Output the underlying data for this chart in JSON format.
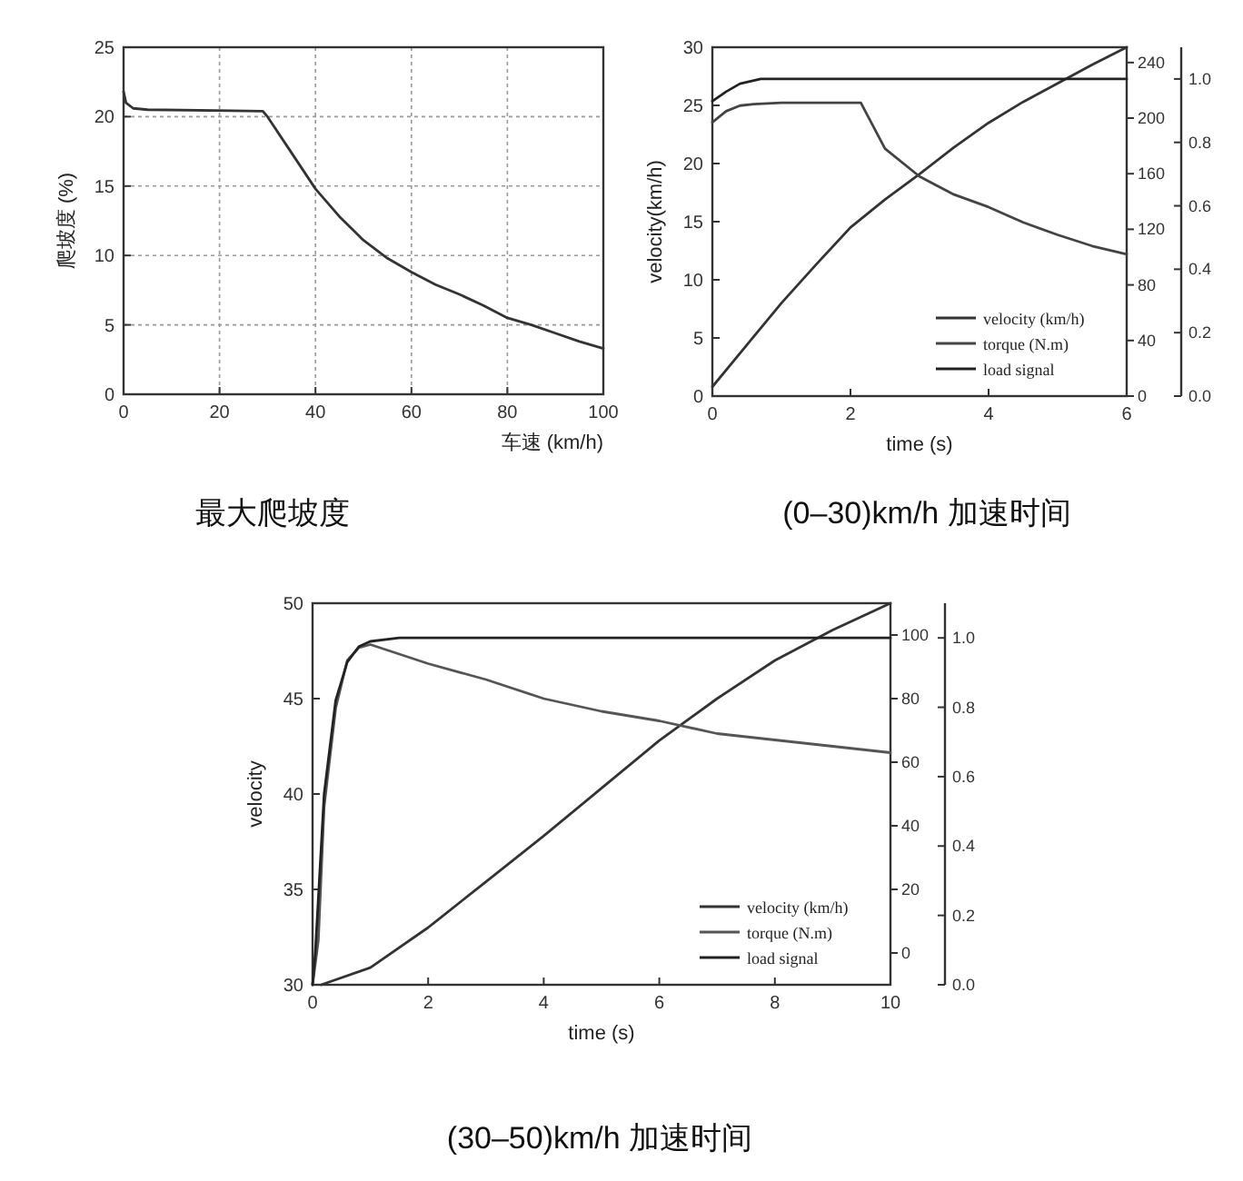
{
  "chart_data": [
    {
      "type": "line",
      "title": "最大爬坡度",
      "xlabel": "车速 (km/h)",
      "ylabel": "爬坡度 (%)",
      "color": "#333333",
      "grid": true,
      "x": [
        0,
        0.5,
        2,
        5,
        29,
        30,
        35,
        40,
        45,
        50,
        55,
        60,
        65,
        70,
        75,
        80,
        85,
        90,
        95,
        100
      ],
      "values": [
        21.8,
        21.0,
        20.6,
        20.5,
        20.4,
        20.0,
        17.4,
        14.8,
        12.8,
        11.1,
        9.8,
        8.8,
        7.9,
        7.2,
        6.4,
        5.5,
        5.0,
        4.4,
        3.8,
        3.3
      ],
      "xlim": [
        0,
        100
      ],
      "ylim": [
        0,
        25
      ],
      "xticks": [
        0,
        20,
        40,
        60,
        80,
        100
      ],
      "yticks": [
        0,
        5,
        10,
        15,
        20,
        25
      ]
    },
    {
      "type": "line",
      "title": "(0–30)km/h 加速时间",
      "xlabel": "time (s)",
      "ylabel": "velocity(km/h)",
      "legend": "bottom right",
      "xlim": [
        0,
        6
      ],
      "ylim": [
        0,
        30
      ],
      "y2lim": [
        0,
        251
      ],
      "y3lim": [
        0,
        1.1
      ],
      "xticks": [
        0,
        2,
        4,
        6
      ],
      "yticks": [
        0,
        5,
        10,
        15,
        20,
        25,
        30
      ],
      "y2ticks": [
        0,
        40,
        80,
        120,
        160,
        200,
        240
      ],
      "y3ticks": [
        {
          "value": 0,
          "label": "0.0"
        },
        {
          "value": 0.2,
          "label": "0.2"
        },
        {
          "value": 0.4,
          "label": "0.4"
        },
        {
          "value": 0.6,
          "label": "0.6"
        },
        {
          "value": 0.8,
          "label": "0.8"
        },
        {
          "value": 1,
          "label": "1.0"
        }
      ],
      "series": [
        {
          "name": "velocity (km/h)",
          "color": "#333333",
          "x": [
            0,
            0.5,
            1,
            1.5,
            2,
            2.5,
            3,
            3.5,
            4,
            4.5,
            5,
            5.5,
            6
          ],
          "values": [
            0.8,
            4.4,
            8.0,
            11.3,
            14.5,
            16.9,
            19.1,
            21.4,
            23.5,
            25.3,
            26.9,
            28.5,
            30
          ]
        },
        {
          "name": "torque (N.m)",
          "color": "#444444",
          "axis": "y2",
          "x": [
            0,
            0.2,
            0.4,
            0.6,
            1,
            1.5,
            2.15,
            2.5,
            3,
            3.5,
            4,
            4.5,
            5,
            5.5,
            6
          ],
          "values": [
            197,
            205,
            209,
            210,
            211,
            211,
            211,
            178,
            158,
            145,
            136,
            125,
            116,
            108,
            102
          ]
        },
        {
          "name": "load signal",
          "color": "#222222",
          "axis": "y3",
          "x": [
            0,
            0.2,
            0.4,
            0.7,
            1,
            6
          ],
          "values": [
            0.93,
            0.96,
            0.985,
            1.0,
            1.0,
            1.0
          ]
        }
      ]
    },
    {
      "type": "line",
      "title": "(30–50)km/h 加速时间",
      "xlabel": "time (s)",
      "ylabel": "velocity",
      "legend": "bottom right",
      "xlim": [
        0,
        10
      ],
      "ylim": [
        30,
        50
      ],
      "y2lim": [
        -10,
        110
      ],
      "y3lim": [
        0,
        1.1
      ],
      "xticks": [
        0,
        2,
        4,
        6,
        8,
        10
      ],
      "yticks": [
        30,
        35,
        40,
        45,
        50
      ],
      "y2ticks": [
        0,
        20,
        40,
        60,
        80,
        100
      ],
      "y3ticks": [
        {
          "value": 0,
          "label": "0.0"
        },
        {
          "value": 0.2,
          "label": "0.2"
        },
        {
          "value": 0.4,
          "label": "0.4"
        },
        {
          "value": 0.6,
          "label": "0.6"
        },
        {
          "value": 0.8,
          "label": "0.8"
        },
        {
          "value": 1,
          "label": "1.0"
        }
      ],
      "series": [
        {
          "name": "velocity (km/h)",
          "color": "#333333",
          "x": [
            0.15,
            1,
            2,
            3,
            4,
            5,
            6,
            7,
            8,
            9,
            10
          ],
          "values": [
            30,
            30.9,
            33.0,
            35.4,
            37.8,
            40.3,
            42.8,
            45.0,
            47.0,
            48.6,
            50
          ]
        },
        {
          "name": "torque (N.m)",
          "color": "#555555",
          "axis": "y2",
          "x": [
            0,
            0.1,
            0.2,
            0.4,
            0.6,
            0.8,
            1,
            1.5,
            2,
            3,
            4,
            5,
            6,
            7,
            8,
            9,
            10
          ],
          "values": [
            -10,
            4,
            46,
            77,
            92,
            96,
            97,
            94,
            91,
            86,
            80,
            76,
            73,
            69,
            67,
            65,
            63
          ]
        },
        {
          "name": "load signal",
          "color": "#222222",
          "axis": "y3",
          "x": [
            0,
            0.05,
            0.2,
            0.4,
            0.6,
            0.8,
            1,
            1.5,
            10
          ],
          "values": [
            0,
            0.1,
            0.55,
            0.82,
            0.93,
            0.975,
            0.99,
            1.0,
            1.0
          ]
        }
      ]
    }
  ]
}
